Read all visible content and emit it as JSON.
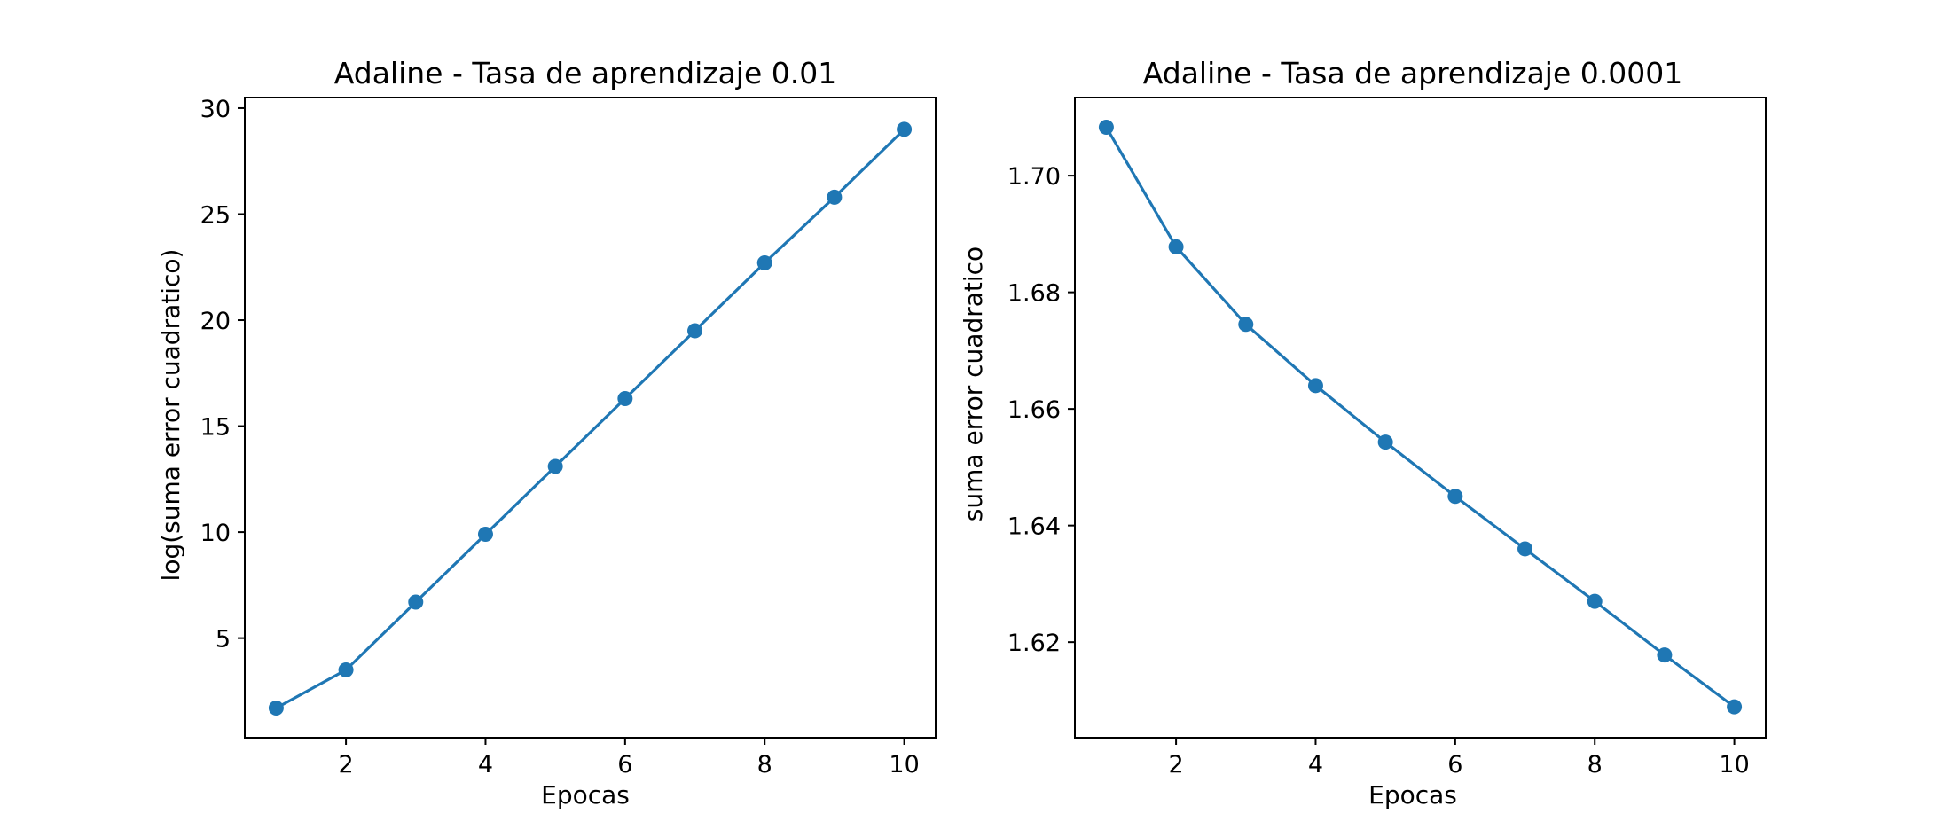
{
  "chart_data": [
    {
      "type": "line",
      "title": "Adaline - Tasa de aprendizaje 0.01",
      "xlabel": "Epocas",
      "ylabel": "log(suma error cuadratico)",
      "xlim": [
        0.55,
        10.45
      ],
      "ylim": [
        0.3,
        30.5
      ],
      "xticks": [
        2,
        4,
        6,
        8,
        10
      ],
      "yticks": [
        5,
        10,
        15,
        20,
        25,
        30
      ],
      "grid": false,
      "color": "#1f77b4",
      "marker": "circle",
      "series": [
        {
          "x": [
            1,
            2,
            3,
            4,
            5,
            6,
            7,
            8,
            9,
            10
          ],
          "values": [
            1.7,
            3.5,
            6.7,
            9.9,
            13.1,
            16.3,
            19.5,
            22.7,
            25.8,
            29.0
          ]
        }
      ]
    },
    {
      "type": "line",
      "title": "Adaline - Tasa de aprendizaje 0.0001",
      "xlabel": "Epocas",
      "ylabel": "suma error cuadratico",
      "xlim": [
        0.55,
        10.45
      ],
      "ylim": [
        1.6036,
        1.7134
      ],
      "xticks": [
        2,
        4,
        6,
        8,
        10
      ],
      "yticks": [
        1.62,
        1.64,
        1.66,
        1.68,
        1.7
      ],
      "ytick_labels": [
        "1.62",
        "1.64",
        "1.66",
        "1.68",
        "1.70"
      ],
      "grid": false,
      "color": "#1f77b4",
      "marker": "circle",
      "series": [
        {
          "x": [
            1,
            2,
            3,
            4,
            5,
            6,
            7,
            8,
            9,
            10
          ],
          "values": [
            1.7083,
            1.6878,
            1.6745,
            1.664,
            1.6543,
            1.645,
            1.636,
            1.627,
            1.6178,
            1.6089
          ]
        }
      ]
    }
  ]
}
